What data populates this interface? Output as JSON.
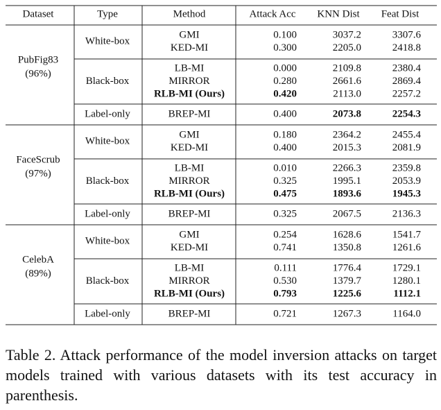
{
  "table": {
    "columns": [
      "Dataset",
      "Type",
      "Method",
      "Attack Acc",
      "KNN Dist",
      "Feat Dist"
    ],
    "groups": [
      {
        "dataset": "PubFig83",
        "accuracy": "(96%)",
        "sections": [
          {
            "type": "White-box",
            "rows": [
              {
                "method": "GMI",
                "values": [
                  "0.100",
                  "3037.2",
                  "3307.6"
                ]
              },
              {
                "method": "KED-MI",
                "values": [
                  "0.300",
                  "2205.0",
                  "2418.8"
                ]
              }
            ]
          },
          {
            "type": "Black-box",
            "rows": [
              {
                "method": "LB-MI",
                "values": [
                  "0.000",
                  "2109.8",
                  "2380.4"
                ]
              },
              {
                "method": "MIRROR",
                "values": [
                  "0.280",
                  "2661.6",
                  "2869.4"
                ]
              },
              {
                "method": "RLB-MI (Ours)",
                "values": [
                  "0.420",
                  "2113.0",
                  "2257.2"
                ],
                "bold_method": true,
                "bold_values": [
                  true,
                  false,
                  false
                ]
              }
            ]
          },
          {
            "type": "Label-only",
            "rows": [
              {
                "method": "BREP-MI",
                "values": [
                  "0.400",
                  "2073.8",
                  "2254.3"
                ],
                "bold_values": [
                  false,
                  true,
                  true
                ]
              }
            ]
          }
        ]
      },
      {
        "dataset": "FaceScrub",
        "accuracy": "(97%)",
        "sections": [
          {
            "type": "White-box",
            "rows": [
              {
                "method": "GMI",
                "values": [
                  "0.180",
                  "2364.2",
                  "2455.4"
                ]
              },
              {
                "method": "KED-MI",
                "values": [
                  "0.400",
                  "2015.3",
                  "2081.9"
                ]
              }
            ]
          },
          {
            "type": "Black-box",
            "rows": [
              {
                "method": "LB-MI",
                "values": [
                  "0.010",
                  "2266.3",
                  "2359.8"
                ]
              },
              {
                "method": "MIRROR",
                "values": [
                  "0.325",
                  "1995.1",
                  "2053.9"
                ]
              },
              {
                "method": "RLB-MI (Ours)",
                "values": [
                  "0.475",
                  "1893.6",
                  "1945.3"
                ],
                "bold_method": true,
                "bold_values": [
                  true,
                  true,
                  true
                ]
              }
            ]
          },
          {
            "type": "Label-only",
            "rows": [
              {
                "method": "BREP-MI",
                "values": [
                  "0.325",
                  "2067.5",
                  "2136.3"
                ]
              }
            ]
          }
        ]
      },
      {
        "dataset": "CelebA",
        "accuracy": "(89%)",
        "sections": [
          {
            "type": "White-box",
            "rows": [
              {
                "method": "GMI",
                "values": [
                  "0.254",
                  "1628.6",
                  "1541.7"
                ]
              },
              {
                "method": "KED-MI",
                "values": [
                  "0.741",
                  "1350.8",
                  "1261.6"
                ]
              }
            ]
          },
          {
            "type": "Black-box",
            "rows": [
              {
                "method": "LB-MI",
                "values": [
                  "0.111",
                  "1776.4",
                  "1729.1"
                ]
              },
              {
                "method": "MIRROR",
                "values": [
                  "0.530",
                  "1379.7",
                  "1280.1"
                ]
              },
              {
                "method": "RLB-MI (Ours)",
                "values": [
                  "0.793",
                  "1225.6",
                  "1112.1"
                ],
                "bold_method": true,
                "bold_values": [
                  true,
                  true,
                  true
                ]
              }
            ]
          },
          {
            "type": "Label-only",
            "rows": [
              {
                "method": "BREP-MI",
                "values": [
                  "0.721",
                  "1267.3",
                  "1164.0"
                ]
              }
            ]
          }
        ]
      }
    ]
  },
  "caption": "Table 2. Attack performance of the model inversion attacks on target models trained with various datasets with its test accuracy in parenthesis."
}
